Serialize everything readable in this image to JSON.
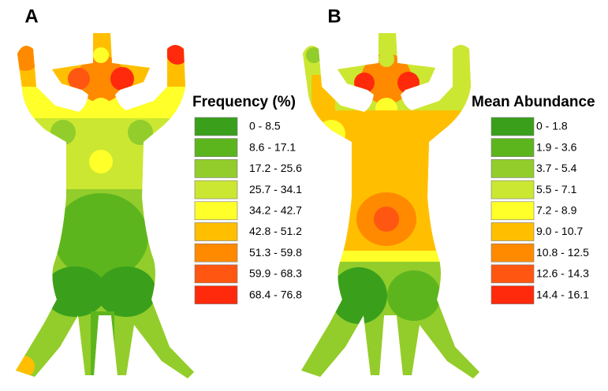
{
  "panels": [
    {
      "label": "A",
      "legend": {
        "title": "Frequency (%)",
        "items": [
          {
            "label": "0 - 8.5",
            "color": "#3aa01c"
          },
          {
            "label": "8.6 - 17.1",
            "color": "#5db51e"
          },
          {
            "label": "17.2 - 25.6",
            "color": "#92cd2c"
          },
          {
            "label": "25.7 - 34.1",
            "color": "#cce732"
          },
          {
            "label": "34.2 - 42.7",
            "color": "#ffff2a"
          },
          {
            "label": "42.8 - 51.2",
            "color": "#ffbf00"
          },
          {
            "label": "51.3 - 59.8",
            "color": "#ff8a00"
          },
          {
            "label": "59.9 - 68.3",
            "color": "#ff5612"
          },
          {
            "label": "68.4 - 76.8",
            "color": "#ff2a0c"
          }
        ]
      }
    },
    {
      "label": "B",
      "legend": {
        "title": "Mean Abundance",
        "items": [
          {
            "label": "0 - 1.8",
            "color": "#3aa01c"
          },
          {
            "label": "1.9 - 3.6",
            "color": "#5db51e"
          },
          {
            "label": "3.7 - 5.4",
            "color": "#92cd2c"
          },
          {
            "label": "5.5 - 7.1",
            "color": "#cce732"
          },
          {
            "label": "7.2 - 8.9",
            "color": "#ffff2a"
          },
          {
            "label": "9.0 - 10.7",
            "color": "#ffbf00"
          },
          {
            "label": "10.8 - 12.5",
            "color": "#ff8a00"
          },
          {
            "label": "12.6 - 14.3",
            "color": "#ff5612"
          },
          {
            "label": "14.4 - 16.1",
            "color": "#ff2a0c"
          }
        ]
      }
    }
  ]
}
